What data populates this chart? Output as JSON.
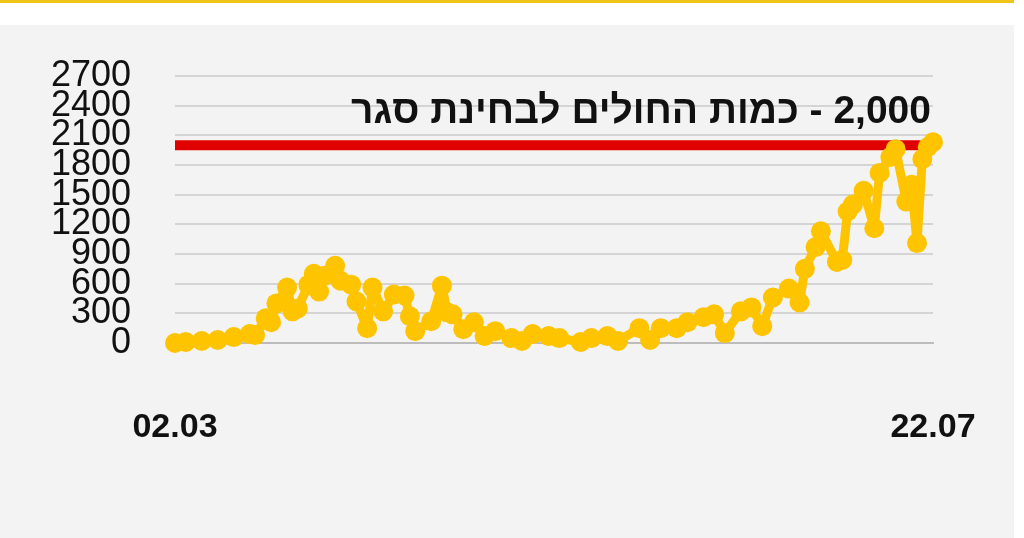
{
  "chart_data": {
    "type": "line",
    "x": [
      "--03-02",
      "--03-04",
      "--03-07",
      "--03-10",
      "--03-13",
      "--03-16",
      "--03-17",
      "--03-19",
      "--03-20",
      "--03-21",
      "--03-23",
      "--03-24",
      "--03-25",
      "--03-27",
      "--03-28",
      "--03-29",
      "--03-30",
      "--04-01",
      "--04-02",
      "--04-04",
      "--04-05",
      "--04-07",
      "--04-08",
      "--04-10",
      "--04-12",
      "--04-14",
      "--04-15",
      "--04-16",
      "--04-19",
      "--04-21",
      "--04-22",
      "--04-23",
      "--04-25",
      "--04-27",
      "--04-29",
      "--05-01",
      "--05-04",
      "--05-06",
      "--05-08",
      "--05-11",
      "--05-13",
      "--05-17",
      "--05-19",
      "--05-22",
      "--05-24",
      "--05-28",
      "--05-30",
      "--06-01",
      "--06-04",
      "--06-06",
      "--06-09",
      "--06-11",
      "--06-13",
      "--06-16",
      "--06-18",
      "--06-20",
      "--06-22",
      "--06-25",
      "--06-27",
      "--06-28",
      "--06-30",
      "--07-01",
      "--07-04",
      "--07-05",
      "--07-06",
      "--07-07",
      "--07-09",
      "--07-11",
      "--07-12",
      "--07-14",
      "--07-15",
      "--07-17",
      "--07-18",
      "--07-19",
      "--07-20",
      "--07-21",
      "--07-22"
    ],
    "values": [
      0,
      10,
      20,
      30,
      60,
      90,
      80,
      250,
      210,
      400,
      560,
      320,
      350,
      590,
      700,
      520,
      680,
      780,
      630,
      590,
      420,
      150,
      560,
      320,
      490,
      480,
      270,
      120,
      220,
      580,
      310,
      290,
      140,
      210,
      70,
      120,
      50,
      20,
      90,
      70,
      50,
      10,
      50,
      70,
      20,
      150,
      30,
      150,
      150,
      210,
      260,
      290,
      100,
      320,
      360,
      170,
      460,
      550,
      410,
      750,
      970,
      1130,
      820,
      840,
      1330,
      1400,
      1540,
      1160,
      1720,
      1880,
      1960,
      1430,
      1600,
      1010,
      1860,
      1980,
      2030
    ],
    "color": "#ffc400",
    "xlim": [
      "--03-02",
      "--07-22"
    ],
    "xticks": [
      {
        "value": "--03-02",
        "label": "02.03"
      },
      {
        "value": "--07-22",
        "label": "22.07"
      }
    ],
    "ylim": [
      0,
      2700
    ],
    "yticks": [
      0,
      300,
      600,
      900,
      1200,
      1500,
      1800,
      2100,
      2400,
      2700
    ],
    "ref_lines": [
      {
        "axis": "y",
        "value": 2000,
        "label": "2,000 - כמות החולים לבחינת סגר",
        "color": "#e00000"
      }
    ],
    "grid": "y",
    "legend": false,
    "marker": "circle",
    "line_style": "solid"
  }
}
